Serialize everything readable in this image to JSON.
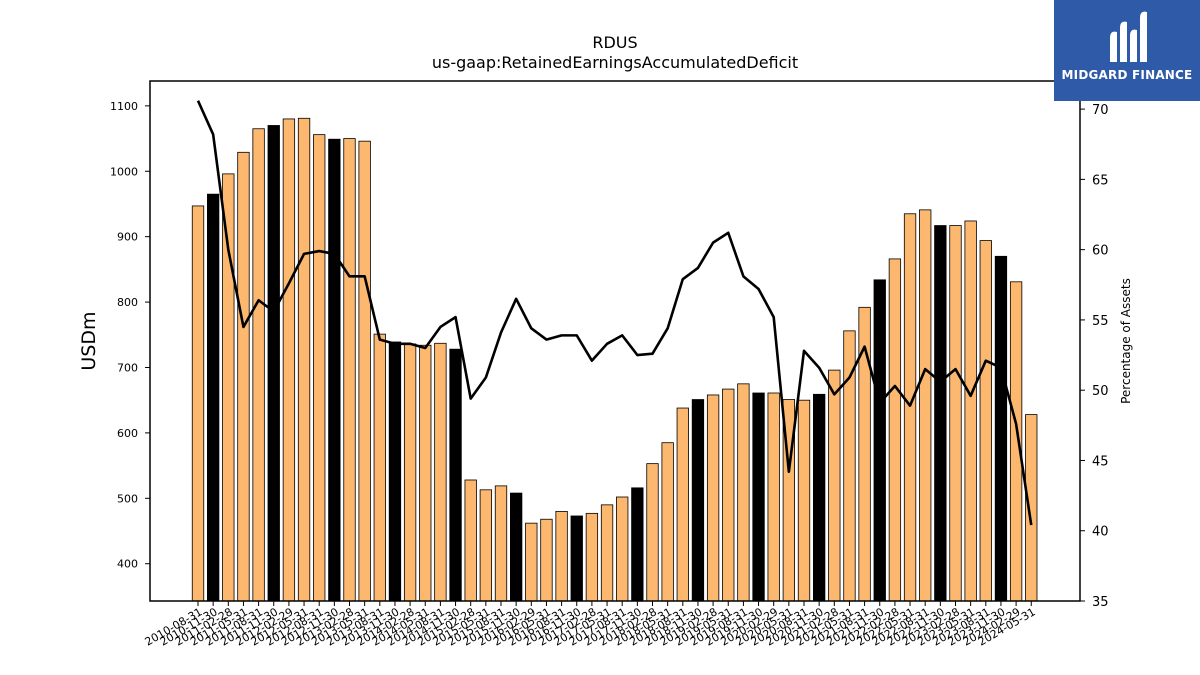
{
  "chart_data": {
    "type": "bar",
    "title": "RDUS",
    "subtitle": "us-gaap:RetainedEarningsAccumulatedDeficit",
    "ylabel": "USDm",
    "y2label": "Percentage of Assets",
    "ylim": [
      343,
      1138
    ],
    "y2lim": [
      35,
      72
    ],
    "yticks": [
      400,
      500,
      600,
      700,
      800,
      900,
      1000,
      1100
    ],
    "y2ticks": [
      35,
      40,
      45,
      50,
      55,
      60,
      65,
      70
    ],
    "grid": false,
    "colors": {
      "bar": "#fdb870",
      "bar_highlight": "#000000",
      "line": "#000000",
      "edge": "#000000"
    },
    "categories": [
      "2010-08-31",
      "2010-11-30",
      "2011-02-28",
      "2011-05-31",
      "2011-08-31",
      "2011-11-30",
      "2012-02-29",
      "2012-05-31",
      "2012-08-31",
      "2012-11-30",
      "2013-02-28",
      "2013-05-31",
      "2013-08-31",
      "2013-11-30",
      "2014-02-28",
      "2014-05-31",
      "2014-08-31",
      "2014-11-30",
      "2015-02-28",
      "2015-05-31",
      "2015-08-31",
      "2015-11-30",
      "2016-02-29",
      "2016-05-31",
      "2016-08-31",
      "2016-11-30",
      "2017-02-28",
      "2017-05-31",
      "2017-08-31",
      "2017-11-30",
      "2018-02-28",
      "2018-05-31",
      "2018-08-31",
      "2018-11-30",
      "2019-02-28",
      "2019-05-31",
      "2019-08-31",
      "2019-11-30",
      "2020-02-29",
      "2020-05-31",
      "2020-08-31",
      "2020-11-30",
      "2021-02-28",
      "2021-05-31",
      "2021-08-31",
      "2021-11-30",
      "2022-02-28",
      "2022-05-31",
      "2022-08-31",
      "2022-11-30",
      "2023-02-28",
      "2023-05-31",
      "2023-08-31",
      "2023-11-30",
      "2024-02-29",
      "2024-05-31"
    ],
    "series": [
      {
        "type": "bar",
        "axis": "left",
        "values": [
          947,
          965,
          996,
          1029,
          1065,
          1070,
          1080,
          1081,
          1056,
          1049,
          1050,
          1046,
          751,
          739,
          736,
          734,
          737,
          728,
          528,
          513,
          519,
          508,
          462,
          468,
          480,
          473,
          477,
          490,
          502,
          516,
          553,
          585,
          638,
          651,
          658,
          667,
          675,
          661,
          661,
          651,
          650,
          659,
          696,
          756,
          792,
          834,
          866,
          935,
          941,
          917,
          917,
          924,
          894,
          870,
          831,
          628
        ],
        "highlight": [
          false,
          true,
          false,
          false,
          false,
          true,
          false,
          false,
          false,
          true,
          false,
          false,
          false,
          true,
          false,
          false,
          false,
          true,
          false,
          false,
          false,
          true,
          false,
          false,
          false,
          true,
          false,
          false,
          false,
          true,
          false,
          false,
          false,
          true,
          false,
          false,
          false,
          true,
          false,
          false,
          false,
          true,
          false,
          false,
          false,
          true,
          false,
          false,
          false,
          true,
          false,
          false,
          false,
          true,
          false,
          false
        ]
      },
      {
        "type": "line",
        "axis": "right",
        "values": [
          70.6,
          68.2,
          60.0,
          54.5,
          56.4,
          55.6,
          57.6,
          59.7,
          59.9,
          59.7,
          58.1,
          58.1,
          53.6,
          53.3,
          53.3,
          53.0,
          54.5,
          55.2,
          49.4,
          50.9,
          54.1,
          56.5,
          54.4,
          53.6,
          53.9,
          53.9,
          52.1,
          53.3,
          53.9,
          52.5,
          52.6,
          54.4,
          57.9,
          58.7,
          60.5,
          61.2,
          58.1,
          57.2,
          55.2,
          44.2,
          52.8,
          51.6,
          49.7,
          50.9,
          53.1,
          49.1,
          50.3,
          48.9,
          51.5,
          50.6,
          51.5,
          49.6,
          52.1,
          51.6,
          47.6,
          40.4
        ]
      }
    ]
  },
  "logo": {
    "text": "MIDGARD FINANCE"
  }
}
